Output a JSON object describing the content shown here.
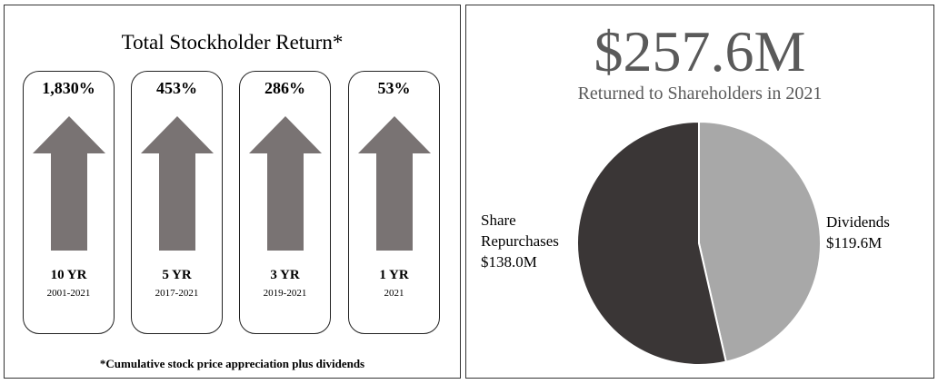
{
  "left_panel": {
    "title": "Total Stockholder Return*",
    "footnote": "*Cumulative stock price appreciation plus dividends",
    "cards": [
      {
        "percent": "1,830%",
        "period": "10 YR",
        "range": "2001-2021"
      },
      {
        "percent": "453%",
        "period": "5 YR",
        "range": "2017-2021"
      },
      {
        "percent": "286%",
        "period": "3 YR",
        "range": "2019-2021"
      },
      {
        "percent": "53%",
        "period": "1 YR",
        "range": "2021"
      }
    ],
    "arrow_color": "#797373"
  },
  "right_panel": {
    "amount": "$257.6M",
    "subtitle": "Returned to Shareholders in 2021"
  },
  "chart_data": {
    "type": "pie",
    "title": "",
    "slices": [
      {
        "label_lines": [
          "Dividends",
          "$119.6M"
        ],
        "value": 119.6,
        "color": "#a8a8a8"
      },
      {
        "label_lines": [
          "Share",
          "Repurchases",
          "$138.0M"
        ],
        "value": 138.0,
        "color": "#3a3636"
      }
    ],
    "start_angle": "top",
    "direction": "clockwise"
  }
}
